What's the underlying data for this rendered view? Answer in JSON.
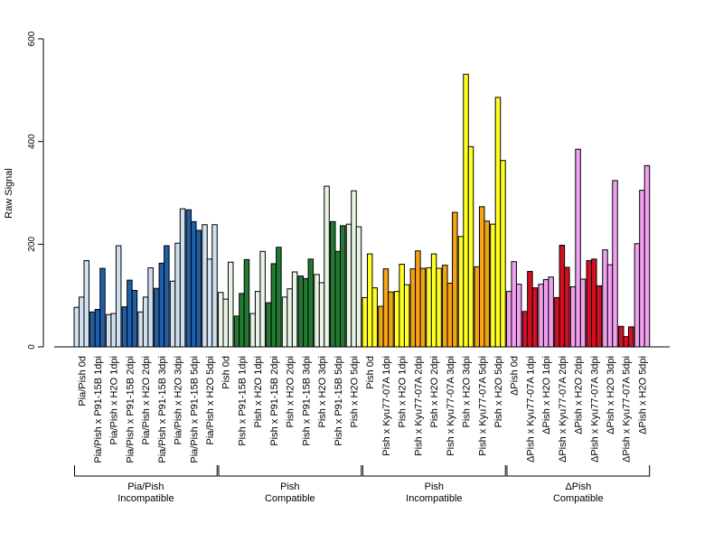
{
  "chart_data": {
    "type": "bar",
    "ylabel": "Raw Signal",
    "ylim": [
      0,
      600
    ],
    "yticks": [
      0,
      200,
      400,
      600
    ],
    "grid": false,
    "categories": [
      "Pia/Pish 0d",
      "Pia/Pish x P91-15B 1dpi",
      "Pia/Pish x H2O 1dpi",
      "Pia/Pish x P91-15B 2dpi",
      "Pia/Pish x H2O 2dpi",
      "Pia/Pish x P91-15B 3dpi",
      "Pia/Pish x H2O 3dpi",
      "Pia/Pish x P91-15B 5dpi",
      "Pia/Pish x H2O 5dpi",
      "Pish 0d",
      "Pish x P91-15B 1dpi",
      "Pish x H2O 1dpi",
      "Pish x P91-15B 2dpi",
      "Pish x H2O 2dpi",
      "Pish x P91-15B 3dpi",
      "Pish x H2O 3dpi",
      "Pish x P91-15B 5dpi",
      "Pish x H2O 5dpi",
      "Pish 0d",
      "Pish x Kyu77-07A 1dpi",
      "Pish x H2O 1dpi",
      "Pish x Kyu77-07A 2dpi",
      "Pish x H2O 2dpi",
      "Pish x Kyu77-07A 3dpi",
      "Pish x H2O 3dpi",
      "Pish x Kyu77-07A 5dpi",
      "Pish x H2O 5dpi",
      "ΔPish 0d",
      "ΔPish x Kyu77-07A 1dpi",
      "ΔPish x H2O 1dpi",
      "ΔPish x Kyu77-07A 2dpi",
      "ΔPish x H2O 2dpi",
      "ΔPish x Kyu77-07A 3dpi",
      "ΔPish x H2O 3dpi",
      "ΔPish x Kyu77-07A 5dpi",
      "ΔPish x H2O 5dpi"
    ],
    "values": [
      [
        77,
        97,
        168
      ],
      [
        68,
        73,
        153
      ],
      [
        63,
        65,
        197
      ],
      [
        78,
        130,
        110
      ],
      [
        68,
        97,
        154
      ],
      [
        114,
        163,
        197
      ],
      [
        128,
        202,
        269
      ],
      [
        267,
        244,
        227
      ],
      [
        238,
        171,
        238
      ],
      [
        106,
        93,
        165
      ],
      [
        60,
        104,
        170
      ],
      [
        65,
        108,
        186
      ],
      [
        86,
        162,
        194
      ],
      [
        97,
        113,
        146
      ],
      [
        138,
        133,
        171
      ],
      [
        141,
        125,
        313
      ],
      [
        244,
        186,
        236
      ],
      [
        239,
        304,
        234
      ],
      [
        96,
        181,
        115
      ],
      [
        79,
        152,
        107
      ],
      [
        108,
        161,
        121
      ],
      [
        152,
        187,
        153
      ],
      [
        154,
        181,
        153
      ],
      [
        159,
        124,
        262
      ],
      [
        215,
        531,
        390
      ],
      [
        156,
        273,
        245
      ],
      [
        239,
        486,
        363
      ],
      [
        108,
        166,
        122
      ],
      [
        69,
        147,
        115
      ],
      [
        122,
        131,
        136
      ],
      [
        96,
        198,
        155
      ],
      [
        117,
        385,
        132
      ],
      [
        168,
        171,
        119
      ],
      [
        189,
        160,
        324
      ],
      [
        40,
        20,
        39
      ],
      [
        201,
        305,
        353
      ]
    ],
    "colors": [
      "#cfe0f0",
      "#1f5fa8",
      "#cfe0f0",
      "#1f5fa8",
      "#cfe0f0",
      "#1f5fa8",
      "#cfe0f0",
      "#1f5fa8",
      "#cfe0f0",
      "#e8f5e4",
      "#217a32",
      "#e8f5e4",
      "#217a32",
      "#e8f5e4",
      "#217a32",
      "#e8f5e4",
      "#217a32",
      "#e8f5e4",
      "#ffff22",
      "#f5a315",
      "#ffff22",
      "#f5a315",
      "#ffff22",
      "#f5a315",
      "#ffff22",
      "#f5a315",
      "#ffff22",
      "#f0a0ee",
      "#d40f20",
      "#f0a0ee",
      "#d40f20",
      "#f0a0ee",
      "#d40f20",
      "#f0a0ee",
      "#d40f20",
      "#f0a0ee"
    ],
    "groups": [
      {
        "line1": "Pia/Pish",
        "line2": "Incompatible",
        "start": 0,
        "end": 8
      },
      {
        "line1": "Pish",
        "line2": "Compatible",
        "start": 9,
        "end": 17
      },
      {
        "line1": "Pish",
        "line2": "Incompatible",
        "start": 18,
        "end": 26
      },
      {
        "line1": "ΔPish",
        "line2": "Compatible",
        "start": 27,
        "end": 35
      }
    ]
  }
}
